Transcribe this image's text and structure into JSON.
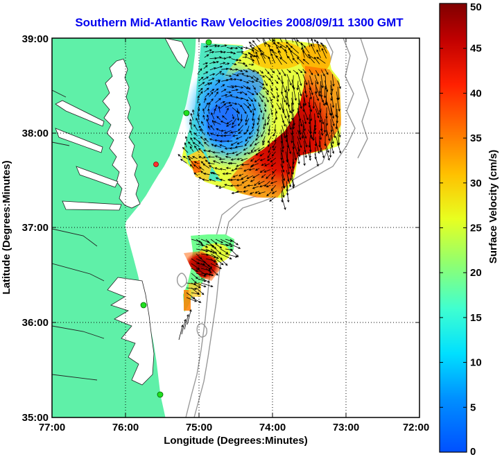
{
  "map": {
    "title": "Southern Mid-Atlantic Raw Velocities 2008/09/11 1300 GMT",
    "xlabel": "Longitude (Degrees:Minutes)",
    "ylabel": "Latitude (Degrees:Minutes)",
    "x_ticks": [
      "77:00",
      "76:00",
      "75:00",
      "74:00",
      "73:00",
      "72:00"
    ],
    "y_ticks": [
      "39:00",
      "38:00",
      "37:00",
      "36:00",
      "35:00"
    ],
    "lon_range": [
      -77,
      -72
    ],
    "lat_range": [
      35,
      39
    ],
    "grid": "dotted",
    "colors": {
      "land": "#5ff0a8",
      "ocean": "#ffffff",
      "isobath": "#999999",
      "title": "#0000ee"
    }
  },
  "colorbar": {
    "label": "Surface Velocity (cm/s)",
    "ticks": [
      "50",
      "45",
      "40",
      "35",
      "30",
      "25",
      "20",
      "15",
      "10",
      "5",
      "0"
    ],
    "range": [
      0,
      50
    ],
    "colormap": "jet"
  },
  "chart_data": {
    "type": "heatmap",
    "variable": "Surface Velocity",
    "units": "cm/s",
    "stations": [
      {
        "lon": -74.87,
        "lat": 39.0
      },
      {
        "lon": -75.17,
        "lat": 38.23
      },
      {
        "lon": -75.52,
        "lat": 37.68
      },
      {
        "lon": -75.68,
        "lat": 36.18
      },
      {
        "lon": -75.5,
        "lat": 35.23
      }
    ],
    "regions": [
      {
        "area": "northern",
        "lon": [
          -75.25,
          -73.05
        ],
        "lat": [
          37.55,
          38.95
        ],
        "speed_range": [
          5,
          50
        ]
      },
      {
        "area": "southern",
        "lon": [
          -75.2,
          -74.3
        ],
        "lat": [
          36.3,
          36.85
        ],
        "speed_range": [
          15,
          50
        ]
      }
    ]
  }
}
